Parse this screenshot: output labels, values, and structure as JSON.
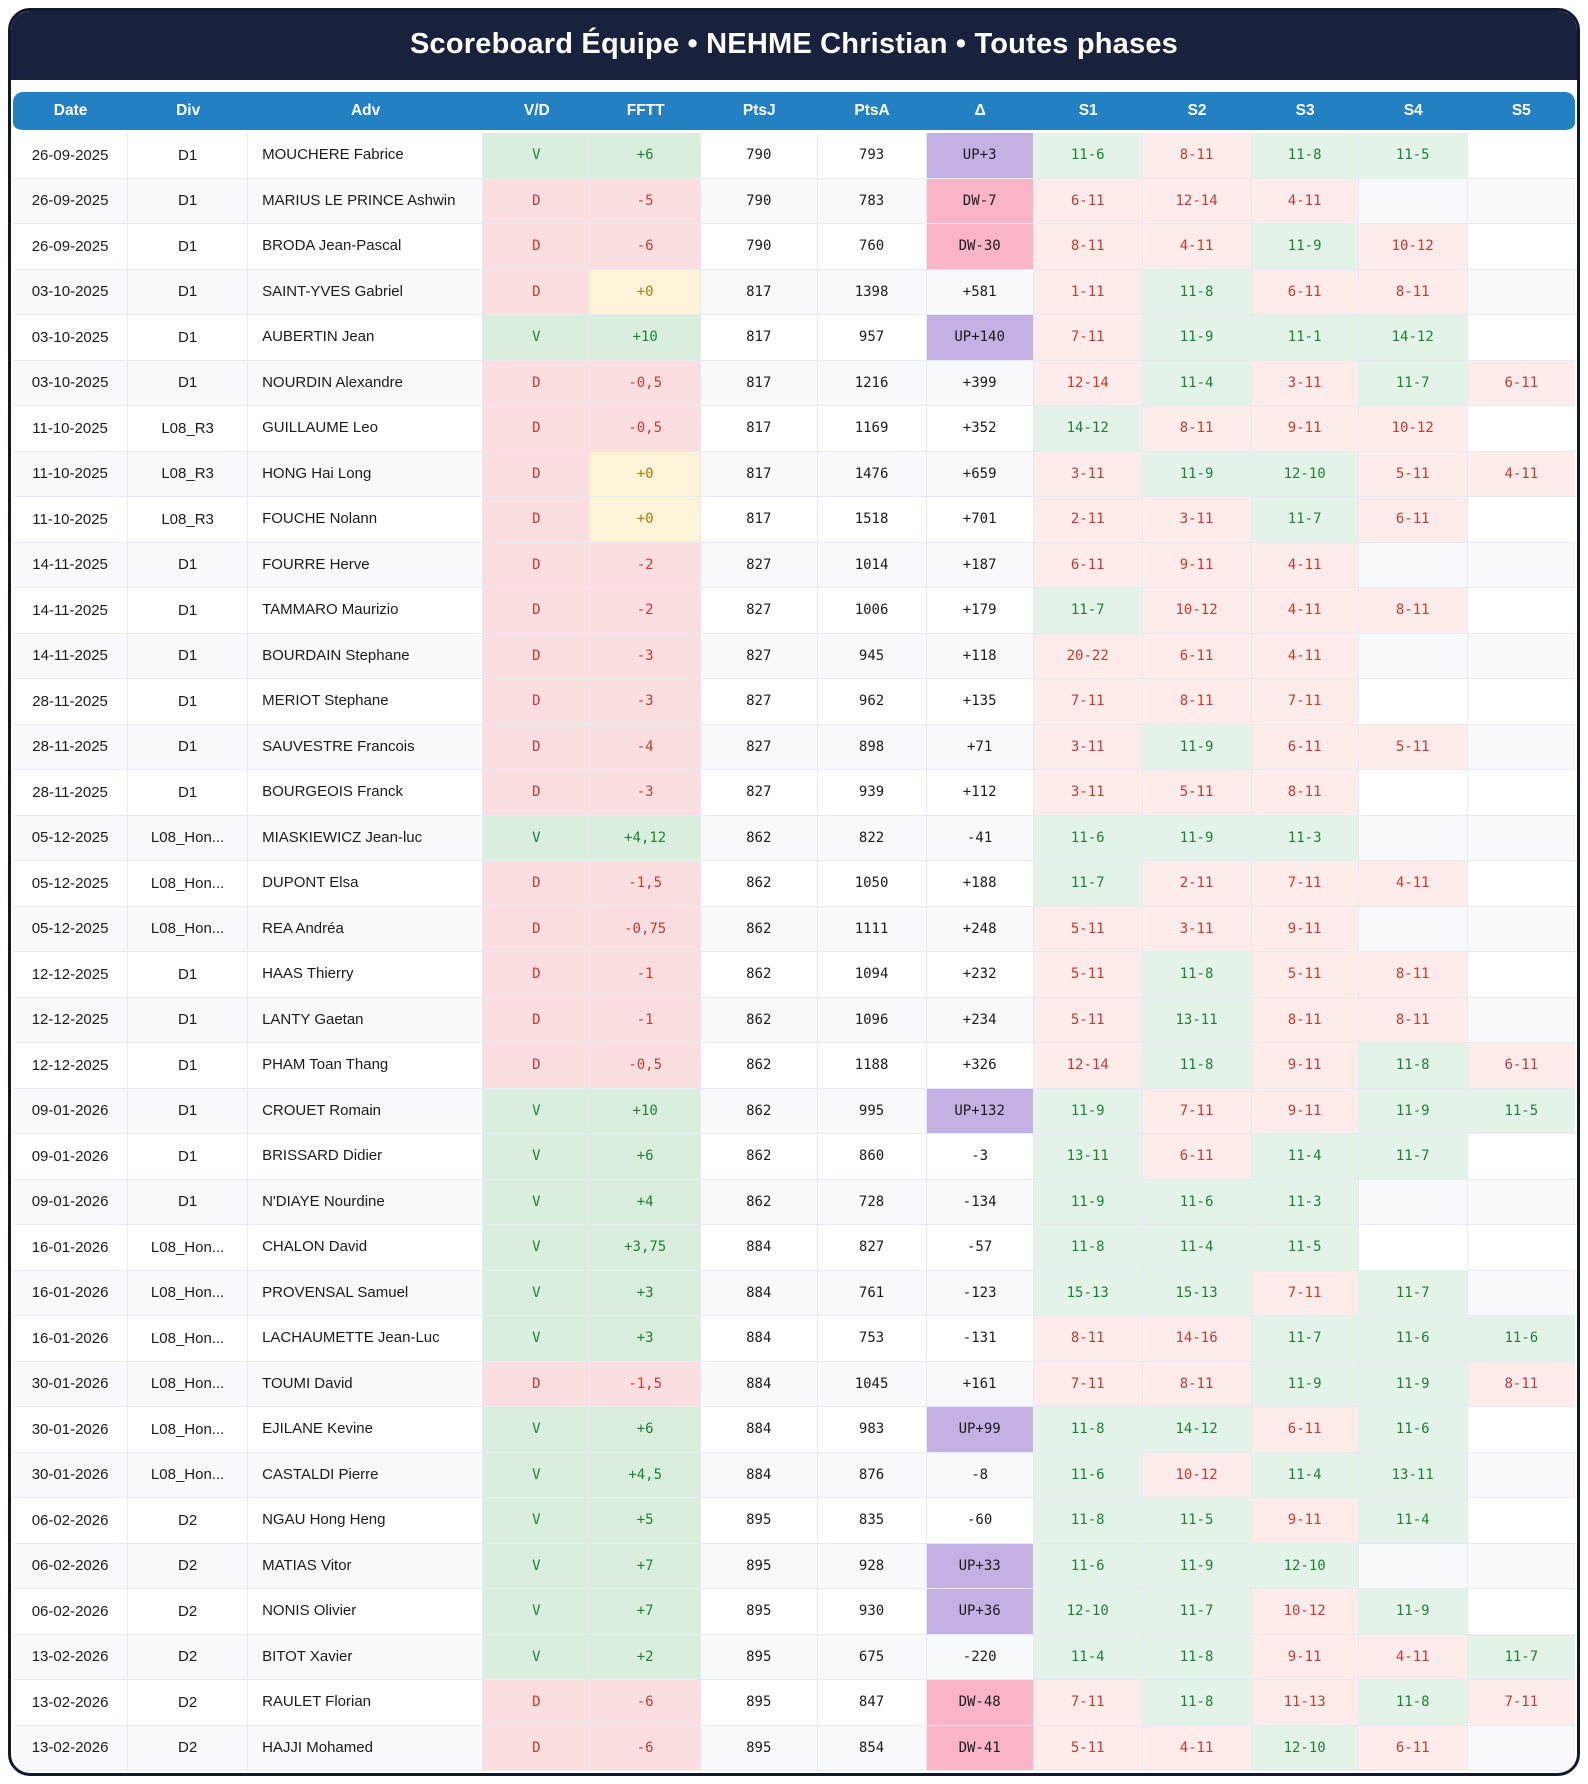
{
  "header": {
    "title": "Scoreboard Équipe • NEHME Christian • Toutes phases"
  },
  "colors": {
    "title_bar": "#18223c",
    "column_header": "#2280c3",
    "win_bg": "#d9eedd",
    "win_text": "#1e7f37",
    "loss_bg": "#fbdfe0",
    "loss_text": "#c23b34",
    "set_win_bg": "#e4f3e8",
    "set_loss_bg": "#fdecea",
    "zero_bg": "#fcf3d9",
    "zero_text": "#ab7b10",
    "up_bg": "#c3b1e4",
    "down_bg": "#f9b4c6"
  },
  "table": {
    "columns": [
      "Date",
      "Div",
      "Adv",
      "V/D",
      "FFTT",
      "PtsJ",
      "PtsA",
      "Δ",
      "S1",
      "S2",
      "S3",
      "S4",
      "S5"
    ],
    "rows": [
      {
        "date": "26-09-2025",
        "div": "D1",
        "adv": "MOUCHERE Fabrice",
        "vd": "V",
        "fftt": "+6",
        "ptsj": "790",
        "ptsa": "793",
        "delta": "UP+3",
        "sets": [
          "11-6",
          "8-11",
          "11-8",
          "11-5",
          ""
        ]
      },
      {
        "date": "26-09-2025",
        "div": "D1",
        "adv": "MARIUS LE PRINCE Ashwin",
        "vd": "D",
        "fftt": "-5",
        "ptsj": "790",
        "ptsa": "783",
        "delta": "DW-7",
        "sets": [
          "6-11",
          "12-14",
          "4-11",
          "",
          ""
        ]
      },
      {
        "date": "26-09-2025",
        "div": "D1",
        "adv": "BRODA Jean-Pascal",
        "vd": "D",
        "fftt": "-6",
        "ptsj": "790",
        "ptsa": "760",
        "delta": "DW-30",
        "sets": [
          "8-11",
          "4-11",
          "11-9",
          "10-12",
          ""
        ]
      },
      {
        "date": "03-10-2025",
        "div": "D1",
        "adv": "SAINT-YVES Gabriel",
        "vd": "D",
        "fftt": "+0",
        "ptsj": "817",
        "ptsa": "1398",
        "delta": "+581",
        "sets": [
          "1-11",
          "11-8",
          "6-11",
          "8-11",
          ""
        ]
      },
      {
        "date": "03-10-2025",
        "div": "D1",
        "adv": "AUBERTIN Jean",
        "vd": "V",
        "fftt": "+10",
        "ptsj": "817",
        "ptsa": "957",
        "delta": "UP+140",
        "sets": [
          "7-11",
          "11-9",
          "11-1",
          "14-12",
          ""
        ]
      },
      {
        "date": "03-10-2025",
        "div": "D1",
        "adv": "NOURDIN Alexandre",
        "vd": "D",
        "fftt": "-0,5",
        "ptsj": "817",
        "ptsa": "1216",
        "delta": "+399",
        "sets": [
          "12-14",
          "11-4",
          "3-11",
          "11-7",
          "6-11"
        ]
      },
      {
        "date": "11-10-2025",
        "div": "L08_R3",
        "adv": "GUILLAUME Leo",
        "vd": "D",
        "fftt": "-0,5",
        "ptsj": "817",
        "ptsa": "1169",
        "delta": "+352",
        "sets": [
          "14-12",
          "8-11",
          "9-11",
          "10-12",
          ""
        ]
      },
      {
        "date": "11-10-2025",
        "div": "L08_R3",
        "adv": "HONG Hai Long",
        "vd": "D",
        "fftt": "+0",
        "ptsj": "817",
        "ptsa": "1476",
        "delta": "+659",
        "sets": [
          "3-11",
          "11-9",
          "12-10",
          "5-11",
          "4-11"
        ]
      },
      {
        "date": "11-10-2025",
        "div": "L08_R3",
        "adv": "FOUCHE Nolann",
        "vd": "D",
        "fftt": "+0",
        "ptsj": "817",
        "ptsa": "1518",
        "delta": "+701",
        "sets": [
          "2-11",
          "3-11",
          "11-7",
          "6-11",
          ""
        ]
      },
      {
        "date": "14-11-2025",
        "div": "D1",
        "adv": "FOURRE Herve",
        "vd": "D",
        "fftt": "-2",
        "ptsj": "827",
        "ptsa": "1014",
        "delta": "+187",
        "sets": [
          "6-11",
          "9-11",
          "4-11",
          "",
          ""
        ]
      },
      {
        "date": "14-11-2025",
        "div": "D1",
        "adv": "TAMMARO Maurizio",
        "vd": "D",
        "fftt": "-2",
        "ptsj": "827",
        "ptsa": "1006",
        "delta": "+179",
        "sets": [
          "11-7",
          "10-12",
          "4-11",
          "8-11",
          ""
        ]
      },
      {
        "date": "14-11-2025",
        "div": "D1",
        "adv": "BOURDAIN Stephane",
        "vd": "D",
        "fftt": "-3",
        "ptsj": "827",
        "ptsa": "945",
        "delta": "+118",
        "sets": [
          "20-22",
          "6-11",
          "4-11",
          "",
          ""
        ]
      },
      {
        "date": "28-11-2025",
        "div": "D1",
        "adv": "MERIOT Stephane",
        "vd": "D",
        "fftt": "-3",
        "ptsj": "827",
        "ptsa": "962",
        "delta": "+135",
        "sets": [
          "7-11",
          "8-11",
          "7-11",
          "",
          ""
        ]
      },
      {
        "date": "28-11-2025",
        "div": "D1",
        "adv": "SAUVESTRE Francois",
        "vd": "D",
        "fftt": "-4",
        "ptsj": "827",
        "ptsa": "898",
        "delta": "+71",
        "sets": [
          "3-11",
          "11-9",
          "6-11",
          "5-11",
          ""
        ]
      },
      {
        "date": "28-11-2025",
        "div": "D1",
        "adv": "BOURGEOIS Franck",
        "vd": "D",
        "fftt": "-3",
        "ptsj": "827",
        "ptsa": "939",
        "delta": "+112",
        "sets": [
          "3-11",
          "5-11",
          "8-11",
          "",
          ""
        ]
      },
      {
        "date": "05-12-2025",
        "div": "L08_Hon...",
        "adv": "MIASKIEWICZ Jean-luc",
        "vd": "V",
        "fftt": "+4,12",
        "ptsj": "862",
        "ptsa": "822",
        "delta": "-41",
        "sets": [
          "11-6",
          "11-9",
          "11-3",
          "",
          ""
        ]
      },
      {
        "date": "05-12-2025",
        "div": "L08_Hon...",
        "adv": "DUPONT Elsa",
        "vd": "D",
        "fftt": "-1,5",
        "ptsj": "862",
        "ptsa": "1050",
        "delta": "+188",
        "sets": [
          "11-7",
          "2-11",
          "7-11",
          "4-11",
          ""
        ]
      },
      {
        "date": "05-12-2025",
        "div": "L08_Hon...",
        "adv": "REA Andréa",
        "vd": "D",
        "fftt": "-0,75",
        "ptsj": "862",
        "ptsa": "1111",
        "delta": "+248",
        "sets": [
          "5-11",
          "3-11",
          "9-11",
          "",
          ""
        ]
      },
      {
        "date": "12-12-2025",
        "div": "D1",
        "adv": "HAAS Thierry",
        "vd": "D",
        "fftt": "-1",
        "ptsj": "862",
        "ptsa": "1094",
        "delta": "+232",
        "sets": [
          "5-11",
          "11-8",
          "5-11",
          "8-11",
          ""
        ]
      },
      {
        "date": "12-12-2025",
        "div": "D1",
        "adv": "LANTY Gaetan",
        "vd": "D",
        "fftt": "-1",
        "ptsj": "862",
        "ptsa": "1096",
        "delta": "+234",
        "sets": [
          "5-11",
          "13-11",
          "8-11",
          "8-11",
          ""
        ]
      },
      {
        "date": "12-12-2025",
        "div": "D1",
        "adv": "PHAM Toan Thang",
        "vd": "D",
        "fftt": "-0,5",
        "ptsj": "862",
        "ptsa": "1188",
        "delta": "+326",
        "sets": [
          "12-14",
          "11-8",
          "9-11",
          "11-8",
          "6-11"
        ]
      },
      {
        "date": "09-01-2026",
        "div": "D1",
        "adv": "CROUET Romain",
        "vd": "V",
        "fftt": "+10",
        "ptsj": "862",
        "ptsa": "995",
        "delta": "UP+132",
        "sets": [
          "11-9",
          "7-11",
          "9-11",
          "11-9",
          "11-5"
        ]
      },
      {
        "date": "09-01-2026",
        "div": "D1",
        "adv": "BRISSARD Didier",
        "vd": "V",
        "fftt": "+6",
        "ptsj": "862",
        "ptsa": "860",
        "delta": "-3",
        "sets": [
          "13-11",
          "6-11",
          "11-4",
          "11-7",
          ""
        ]
      },
      {
        "date": "09-01-2026",
        "div": "D1",
        "adv": "N'DIAYE Nourdine",
        "vd": "V",
        "fftt": "+4",
        "ptsj": "862",
        "ptsa": "728",
        "delta": "-134",
        "sets": [
          "11-9",
          "11-6",
          "11-3",
          "",
          ""
        ]
      },
      {
        "date": "16-01-2026",
        "div": "L08_Hon...",
        "adv": "CHALON David",
        "vd": "V",
        "fftt": "+3,75",
        "ptsj": "884",
        "ptsa": "827",
        "delta": "-57",
        "sets": [
          "11-8",
          "11-4",
          "11-5",
          "",
          ""
        ]
      },
      {
        "date": "16-01-2026",
        "div": "L08_Hon...",
        "adv": "PROVENSAL Samuel",
        "vd": "V",
        "fftt": "+3",
        "ptsj": "884",
        "ptsa": "761",
        "delta": "-123",
        "sets": [
          "15-13",
          "15-13",
          "7-11",
          "11-7",
          ""
        ]
      },
      {
        "date": "16-01-2026",
        "div": "L08_Hon...",
        "adv": "LACHAUMETTE Jean-Luc",
        "vd": "V",
        "fftt": "+3",
        "ptsj": "884",
        "ptsa": "753",
        "delta": "-131",
        "sets": [
          "8-11",
          "14-16",
          "11-7",
          "11-6",
          "11-6"
        ]
      },
      {
        "date": "30-01-2026",
        "div": "L08_Hon...",
        "adv": "TOUMI David",
        "vd": "D",
        "fftt": "-1,5",
        "ptsj": "884",
        "ptsa": "1045",
        "delta": "+161",
        "sets": [
          "7-11",
          "8-11",
          "11-9",
          "11-9",
          "8-11"
        ]
      },
      {
        "date": "30-01-2026",
        "div": "L08_Hon...",
        "adv": "EJILANE Kevine",
        "vd": "V",
        "fftt": "+6",
        "ptsj": "884",
        "ptsa": "983",
        "delta": "UP+99",
        "sets": [
          "11-8",
          "14-12",
          "6-11",
          "11-6",
          ""
        ]
      },
      {
        "date": "30-01-2026",
        "div": "L08_Hon...",
        "adv": "CASTALDI Pierre",
        "vd": "V",
        "fftt": "+4,5",
        "ptsj": "884",
        "ptsa": "876",
        "delta": "-8",
        "sets": [
          "11-6",
          "10-12",
          "11-4",
          "13-11",
          ""
        ]
      },
      {
        "date": "06-02-2026",
        "div": "D2",
        "adv": "NGAU Hong Heng",
        "vd": "V",
        "fftt": "+5",
        "ptsj": "895",
        "ptsa": "835",
        "delta": "-60",
        "sets": [
          "11-8",
          "11-5",
          "9-11",
          "11-4",
          ""
        ]
      },
      {
        "date": "06-02-2026",
        "div": "D2",
        "adv": "MATIAS Vitor",
        "vd": "V",
        "fftt": "+7",
        "ptsj": "895",
        "ptsa": "928",
        "delta": "UP+33",
        "sets": [
          "11-6",
          "11-9",
          "12-10",
          "",
          ""
        ]
      },
      {
        "date": "06-02-2026",
        "div": "D2",
        "adv": "NONIS Olivier",
        "vd": "V",
        "fftt": "+7",
        "ptsj": "895",
        "ptsa": "930",
        "delta": "UP+36",
        "sets": [
          "12-10",
          "11-7",
          "10-12",
          "11-9",
          ""
        ]
      },
      {
        "date": "13-02-2026",
        "div": "D2",
        "adv": "BITOT Xavier",
        "vd": "V",
        "fftt": "+2",
        "ptsj": "895",
        "ptsa": "675",
        "delta": "-220",
        "sets": [
          "11-4",
          "11-8",
          "9-11",
          "4-11",
          "11-7"
        ]
      },
      {
        "date": "13-02-2026",
        "div": "D2",
        "adv": "RAULET Florian",
        "vd": "D",
        "fftt": "-6",
        "ptsj": "895",
        "ptsa": "847",
        "delta": "DW-48",
        "sets": [
          "7-11",
          "11-8",
          "11-13",
          "11-8",
          "7-11"
        ]
      },
      {
        "date": "13-02-2026",
        "div": "D2",
        "adv": "HAJJI Mohamed",
        "vd": "D",
        "fftt": "-6",
        "ptsj": "895",
        "ptsa": "854",
        "delta": "DW-41",
        "sets": [
          "5-11",
          "4-11",
          "12-10",
          "6-11",
          ""
        ]
      }
    ]
  }
}
